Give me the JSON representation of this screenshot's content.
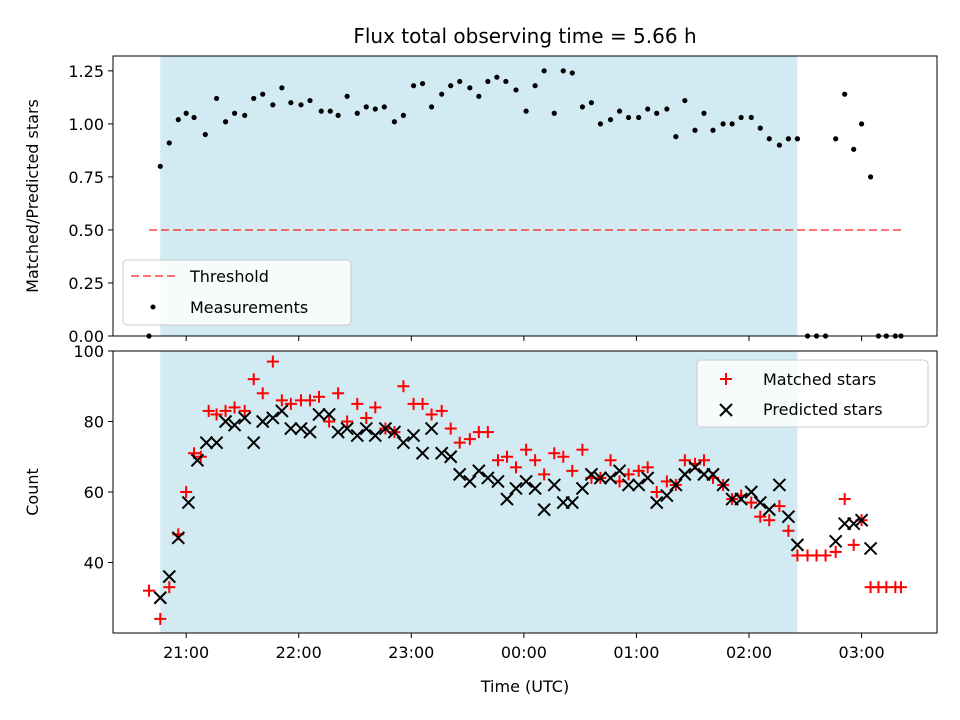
{
  "chart_data": {
    "title": "Flux total observing time = 5.66 h",
    "xlabel": "Time (UTC)",
    "x_unit": "hours",
    "x_tick_values": [
      21,
      22,
      23,
      24,
      25,
      26,
      27
    ],
    "x_tick_labels": [
      "21:00",
      "22:00",
      "23:00",
      "00:00",
      "01:00",
      "02:00",
      "03:00"
    ],
    "xlim": [
      20.35,
      27.67
    ],
    "shaded_interval": [
      20.77,
      26.43
    ],
    "shade_color": "#add8e6",
    "panels": [
      {
        "type": "scatter",
        "ylabel": "Matched/Predicted stars",
        "ylim": [
          0,
          1.32
        ],
        "y_ticks": [
          0.0,
          0.25,
          0.5,
          0.75,
          1.0,
          1.25
        ],
        "y_tick_labels": [
          "0.00",
          "0.25",
          "0.50",
          "0.75",
          "1.00",
          "1.25"
        ],
        "legend_position": "lower-left",
        "threshold": {
          "name": "Threshold",
          "value": 0.5,
          "x_range": [
            20.67,
            27.35
          ],
          "color": "#ff0000"
        },
        "series": [
          {
            "name": "Measurements",
            "marker": "dot",
            "color": "#000000",
            "x": [
              20.67,
              20.77,
              20.85,
              20.93,
              21.0,
              21.07,
              21.17,
              21.27,
              21.35,
              21.43,
              21.52,
              21.6,
              21.68,
              21.77,
              21.85,
              21.93,
              22.02,
              22.1,
              22.2,
              22.28,
              22.35,
              22.43,
              22.52,
              22.6,
              22.68,
              22.76,
              22.85,
              22.93,
              23.02,
              23.1,
              23.18,
              23.27,
              23.35,
              23.43,
              23.52,
              23.6,
              23.68,
              23.76,
              23.84,
              23.93,
              24.02,
              24.1,
              24.18,
              24.27,
              24.35,
              24.43,
              24.52,
              24.6,
              24.68,
              24.77,
              24.85,
              24.93,
              25.02,
              25.1,
              25.18,
              25.27,
              25.35,
              25.43,
              25.52,
              25.6,
              25.68,
              25.77,
              25.85,
              25.93,
              26.02,
              26.1,
              26.18,
              26.27,
              26.35,
              26.43,
              26.52,
              26.6,
              26.68,
              26.77,
              26.85,
              26.93,
              27.0,
              27.08,
              27.15,
              27.22,
              27.3,
              27.35
            ],
            "y": [
              0.0,
              0.8,
              0.91,
              1.02,
              1.05,
              1.03,
              0.95,
              1.12,
              1.01,
              1.05,
              1.04,
              1.12,
              1.14,
              1.09,
              1.17,
              1.1,
              1.09,
              1.11,
              1.06,
              1.06,
              1.04,
              1.13,
              1.05,
              1.08,
              1.07,
              1.08,
              1.01,
              1.04,
              1.18,
              1.19,
              1.08,
              1.14,
              1.18,
              1.2,
              1.17,
              1.13,
              1.2,
              1.22,
              1.2,
              1.16,
              1.06,
              1.18,
              1.25,
              1.05,
              1.25,
              1.24,
              1.08,
              1.1,
              1.0,
              1.02,
              1.06,
              1.03,
              1.03,
              1.07,
              1.05,
              1.07,
              0.94,
              1.11,
              0.97,
              1.05,
              0.97,
              1.0,
              1.0,
              1.03,
              1.03,
              0.98,
              0.93,
              0.9,
              0.93,
              0.93,
              0.0,
              0.0,
              0.0,
              0.93,
              1.14,
              0.88,
              1.0,
              0.75,
              0.0,
              0.0,
              0.0,
              0.0
            ]
          }
        ]
      },
      {
        "type": "scatter",
        "ylabel": "Count",
        "ylim": [
          20,
          100
        ],
        "y_ticks": [
          40,
          60,
          80,
          100
        ],
        "y_tick_labels": [
          "40",
          "60",
          "80",
          "100"
        ],
        "legend_position": "upper-right",
        "series": [
          {
            "name": "Matched stars",
            "marker": "plus",
            "color": "#ff0000",
            "x": [
              20.67,
              20.77,
              20.85,
              20.93,
              21.0,
              21.07,
              21.13,
              21.2,
              21.27,
              21.35,
              21.43,
              21.52,
              21.6,
              21.68,
              21.77,
              21.85,
              21.93,
              22.02,
              22.1,
              22.18,
              22.27,
              22.35,
              22.43,
              22.52,
              22.6,
              22.68,
              22.77,
              22.85,
              22.93,
              23.02,
              23.1,
              23.18,
              23.27,
              23.35,
              23.43,
              23.52,
              23.6,
              23.68,
              23.77,
              23.85,
              23.93,
              24.02,
              24.1,
              24.18,
              24.27,
              24.35,
              24.43,
              24.52,
              24.6,
              24.68,
              24.77,
              24.85,
              24.93,
              25.02,
              25.1,
              25.18,
              25.27,
              25.35,
              25.43,
              25.52,
              25.6,
              25.68,
              25.77,
              25.85,
              25.93,
              26.02,
              26.1,
              26.18,
              26.27,
              26.35,
              26.43,
              26.52,
              26.6,
              26.68,
              26.77,
              26.85,
              26.93,
              27.0,
              27.08,
              27.15,
              27.22,
              27.3,
              27.35
            ],
            "y": [
              32,
              24,
              33,
              48,
              60,
              71,
              70,
              83,
              82,
              83,
              84,
              83,
              92,
              88,
              97,
              86,
              85,
              86,
              86,
              87,
              80,
              88,
              80,
              85,
              81,
              84,
              78,
              77,
              90,
              85,
              85,
              82,
              83,
              78,
              74,
              75,
              77,
              77,
              69,
              70,
              67,
              72,
              69,
              65,
              71,
              70,
              66,
              72,
              64,
              64,
              69,
              63,
              65,
              66,
              67,
              60,
              63,
              62,
              69,
              68,
              69,
              64,
              62,
              58,
              59,
              57,
              53,
              52,
              56,
              49,
              42,
              42,
              42,
              42,
              43,
              58,
              45,
              52,
              33,
              33,
              33,
              33,
              33
            ]
          },
          {
            "name": "Predicted stars",
            "marker": "x",
            "color": "#000000",
            "x": [
              20.77,
              20.85,
              20.93,
              21.02,
              21.1,
              21.18,
              21.27,
              21.35,
              21.43,
              21.52,
              21.6,
              21.68,
              21.77,
              21.85,
              21.93,
              22.02,
              22.1,
              22.18,
              22.27,
              22.35,
              22.43,
              22.52,
              22.6,
              22.68,
              22.77,
              22.85,
              22.93,
              23.02,
              23.1,
              23.18,
              23.27,
              23.35,
              23.43,
              23.52,
              23.6,
              23.68,
              23.77,
              23.85,
              23.93,
              24.02,
              24.1,
              24.18,
              24.27,
              24.35,
              24.43,
              24.52,
              24.6,
              24.68,
              24.77,
              24.85,
              24.93,
              25.02,
              25.1,
              25.18,
              25.27,
              25.35,
              25.43,
              25.52,
              25.6,
              25.68,
              25.77,
              25.85,
              25.93,
              26.02,
              26.1,
              26.18,
              26.27,
              26.35,
              26.43,
              26.77,
              26.85,
              26.93,
              27.0,
              27.08
            ],
            "y": [
              30,
              36,
              47,
              57,
              69,
              74,
              74,
              80,
              79,
              81,
              74,
              80,
              81,
              83,
              78,
              78,
              77,
              82,
              82,
              77,
              78,
              76,
              78,
              76,
              78,
              77,
              74,
              76,
              71,
              78,
              71,
              70,
              65,
              63,
              66,
              64,
              63,
              58,
              61,
              63,
              61,
              55,
              62,
              57,
              57,
              61,
              65,
              64,
              64,
              66,
              62,
              62,
              64,
              57,
              59,
              62,
              65,
              67,
              65,
              65,
              62,
              58,
              58,
              60,
              57,
              55,
              62,
              53,
              45,
              46,
              51,
              51,
              52,
              44
            ]
          }
        ]
      }
    ]
  }
}
